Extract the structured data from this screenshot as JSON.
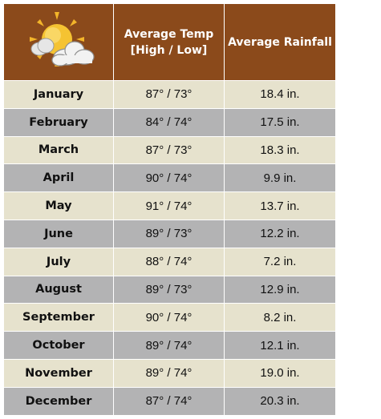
{
  "colors": {
    "header_bg": "#8b4a1b",
    "row_light": "#e6e2cd",
    "row_dark": "#b3b3b4"
  },
  "header": {
    "icon": "partly-sunny-icon",
    "col_temp": "Average Temp",
    "col_temp_sub": "[High / Low]",
    "col_rain": "Average Rainfall"
  },
  "rows": [
    {
      "month": "January",
      "temp": "87° / 73°",
      "rain": "18.4 in."
    },
    {
      "month": "February",
      "temp": "84° / 74°",
      "rain": "17.5 in."
    },
    {
      "month": "March",
      "temp": "87° / 73°",
      "rain": "18.3 in."
    },
    {
      "month": "April",
      "temp": "90° / 74°",
      "rain": "9.9 in."
    },
    {
      "month": "May",
      "temp": "91° / 74°",
      "rain": "13.7 in."
    },
    {
      "month": "June",
      "temp": "89° / 73°",
      "rain": "12.2 in."
    },
    {
      "month": "July",
      "temp": "88° / 74°",
      "rain": "7.2 in."
    },
    {
      "month": "August",
      "temp": "89° / 73°",
      "rain": "12.9 in."
    },
    {
      "month": "September",
      "temp": "90° / 74°",
      "rain": "8.2 in."
    },
    {
      "month": "October",
      "temp": "89° / 74°",
      "rain": "12.1 in."
    },
    {
      "month": "November",
      "temp": "89° / 74°",
      "rain": "19.0 in."
    },
    {
      "month": "December",
      "temp": "87° / 74°",
      "rain": "20.3 in."
    }
  ]
}
